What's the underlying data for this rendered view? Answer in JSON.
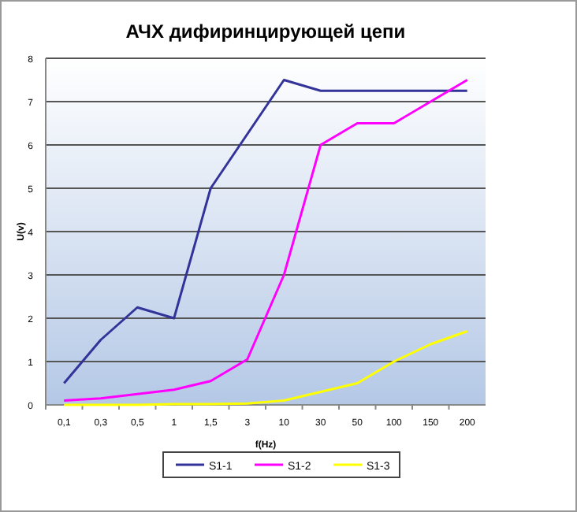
{
  "chart_data": {
    "type": "line",
    "title": "АЧХ дифиринцирующей цепи",
    "xlabel": "f(Hz)",
    "ylabel": "U(v)",
    "categories": [
      "0,1",
      "0,3",
      "0,5",
      "1",
      "1,5",
      "3",
      "10",
      "30",
      "50",
      "100",
      "150",
      "200"
    ],
    "series": [
      {
        "name": "S1-1",
        "color": "#333399",
        "values": [
          0.5,
          1.5,
          2.25,
          2,
          5,
          6.25,
          7.5,
          7.25,
          7.25,
          7.25,
          7.25,
          7.25
        ]
      },
      {
        "name": "S1-2",
        "color": "#ff00ff",
        "values": [
          0.1,
          0.15,
          0.25,
          0.35,
          0.55,
          1.05,
          3,
          6,
          6.5,
          6.5,
          7,
          7.5
        ]
      },
      {
        "name": "S1-3",
        "color": "#ffff00",
        "values": [
          0,
          0,
          0,
          0.02,
          0.02,
          0.03,
          0.1,
          0.3,
          0.5,
          1,
          1.4,
          1.7
        ]
      }
    ],
    "ylim": [
      0,
      8
    ],
    "yticks": [
      0,
      1,
      2,
      3,
      4,
      5,
      6,
      7,
      8
    ],
    "grid": "y",
    "legend": "bottom",
    "marker": "none",
    "line_style": "solid"
  }
}
